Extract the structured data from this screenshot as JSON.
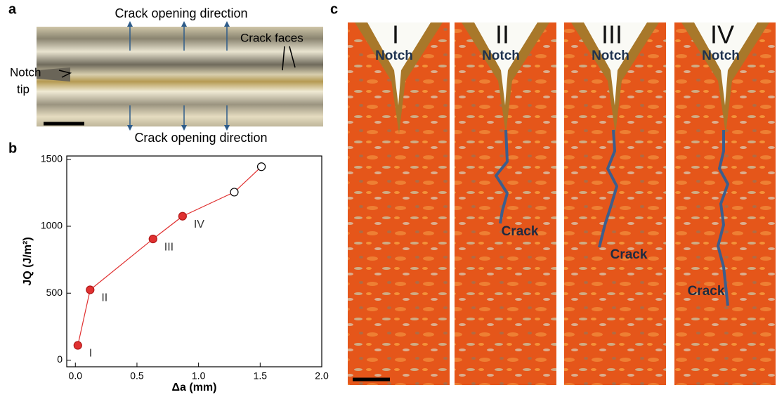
{
  "panel_labels": [
    "a",
    "b",
    "c"
  ],
  "panel_a": {
    "top_label": "Crack opening direction",
    "bottom_label": "Crack opening direction",
    "crack_faces": "Crack faces",
    "notch_tip": [
      "Notch",
      "tip"
    ]
  },
  "chart_data": {
    "type": "line",
    "x_label": "Δa (mm)",
    "y_label": "JQ (J/m²)",
    "x": [
      0.02,
      0.12,
      0.63,
      0.87,
      1.29,
      1.51
    ],
    "series": [
      {
        "color": "#e03030",
        "values": [
          110,
          525,
          905,
          1075,
          1255,
          1445
        ],
        "markers": [
          "filled",
          "filled",
          "filled",
          "filled",
          "open",
          "open"
        ],
        "point_labels": [
          "I",
          "II",
          "III",
          "IV",
          null,
          null
        ]
      }
    ],
    "xlim": [
      -0.07,
      2.0
    ],
    "xticks": [
      {
        "value": 0,
        "label": "0.0"
      },
      {
        "value": 0.5,
        "label": "0.5"
      },
      {
        "value": 1,
        "label": "1.0"
      },
      {
        "value": 1.5,
        "label": "1.5"
      },
      {
        "value": 2,
        "label": "2.0"
      }
    ],
    "ylim": [
      -50,
      1525
    ],
    "yticks": [
      0,
      500,
      1000,
      1500
    ]
  },
  "panel_c": {
    "stages": [
      {
        "label": "I",
        "notch": "Notch"
      },
      {
        "label": "II",
        "notch": "Notch",
        "crack": "Crack"
      },
      {
        "label": "III",
        "notch": "Notch",
        "crack": "Crack"
      },
      {
        "label": "IV",
        "notch": "Notch",
        "crack": "Crack"
      }
    ]
  }
}
